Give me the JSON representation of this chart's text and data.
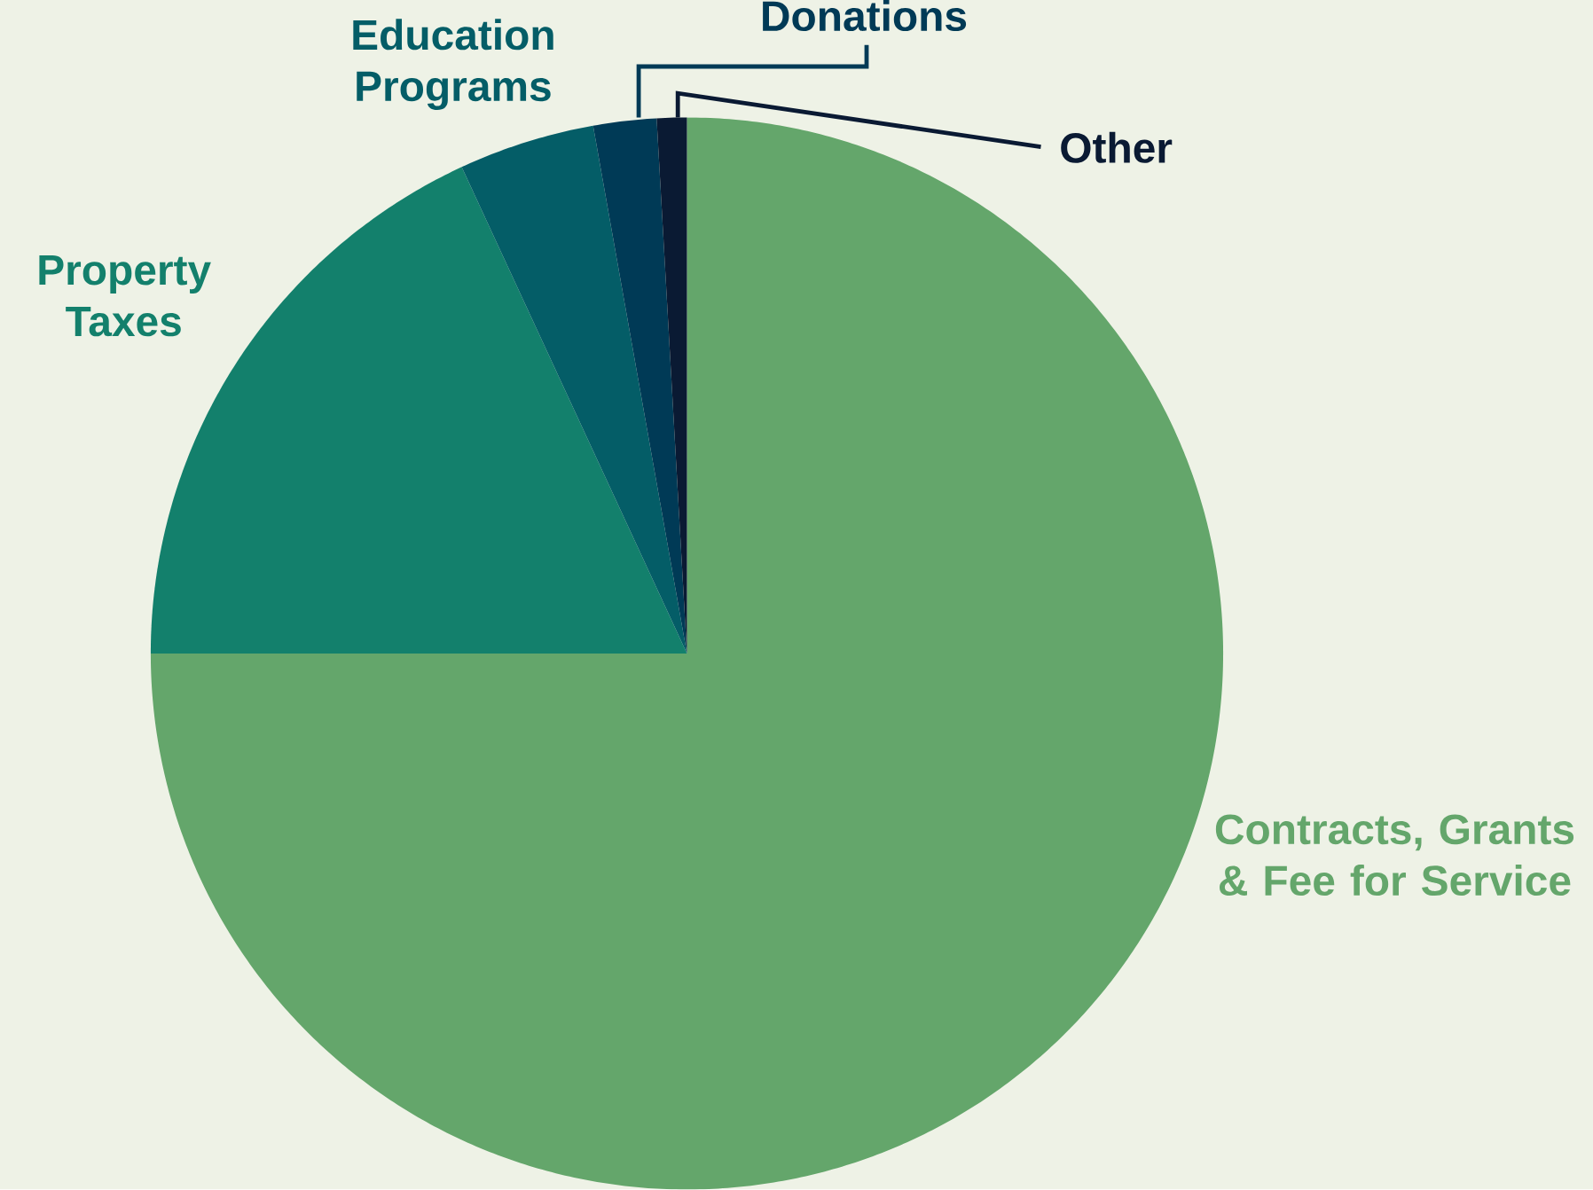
{
  "chart_data": {
    "type": "pie",
    "categories": [
      "Contracts, Grants & Fee for Service",
      "Property Taxes",
      "Education Programs",
      "Donations",
      "Other"
    ],
    "values": [
      75,
      18.1,
      4.1,
      1.9,
      0.9
    ],
    "colors": [
      "#64a66b",
      "#13806c",
      "#045d67",
      "#003a56",
      "#0a1a33"
    ]
  }
}
